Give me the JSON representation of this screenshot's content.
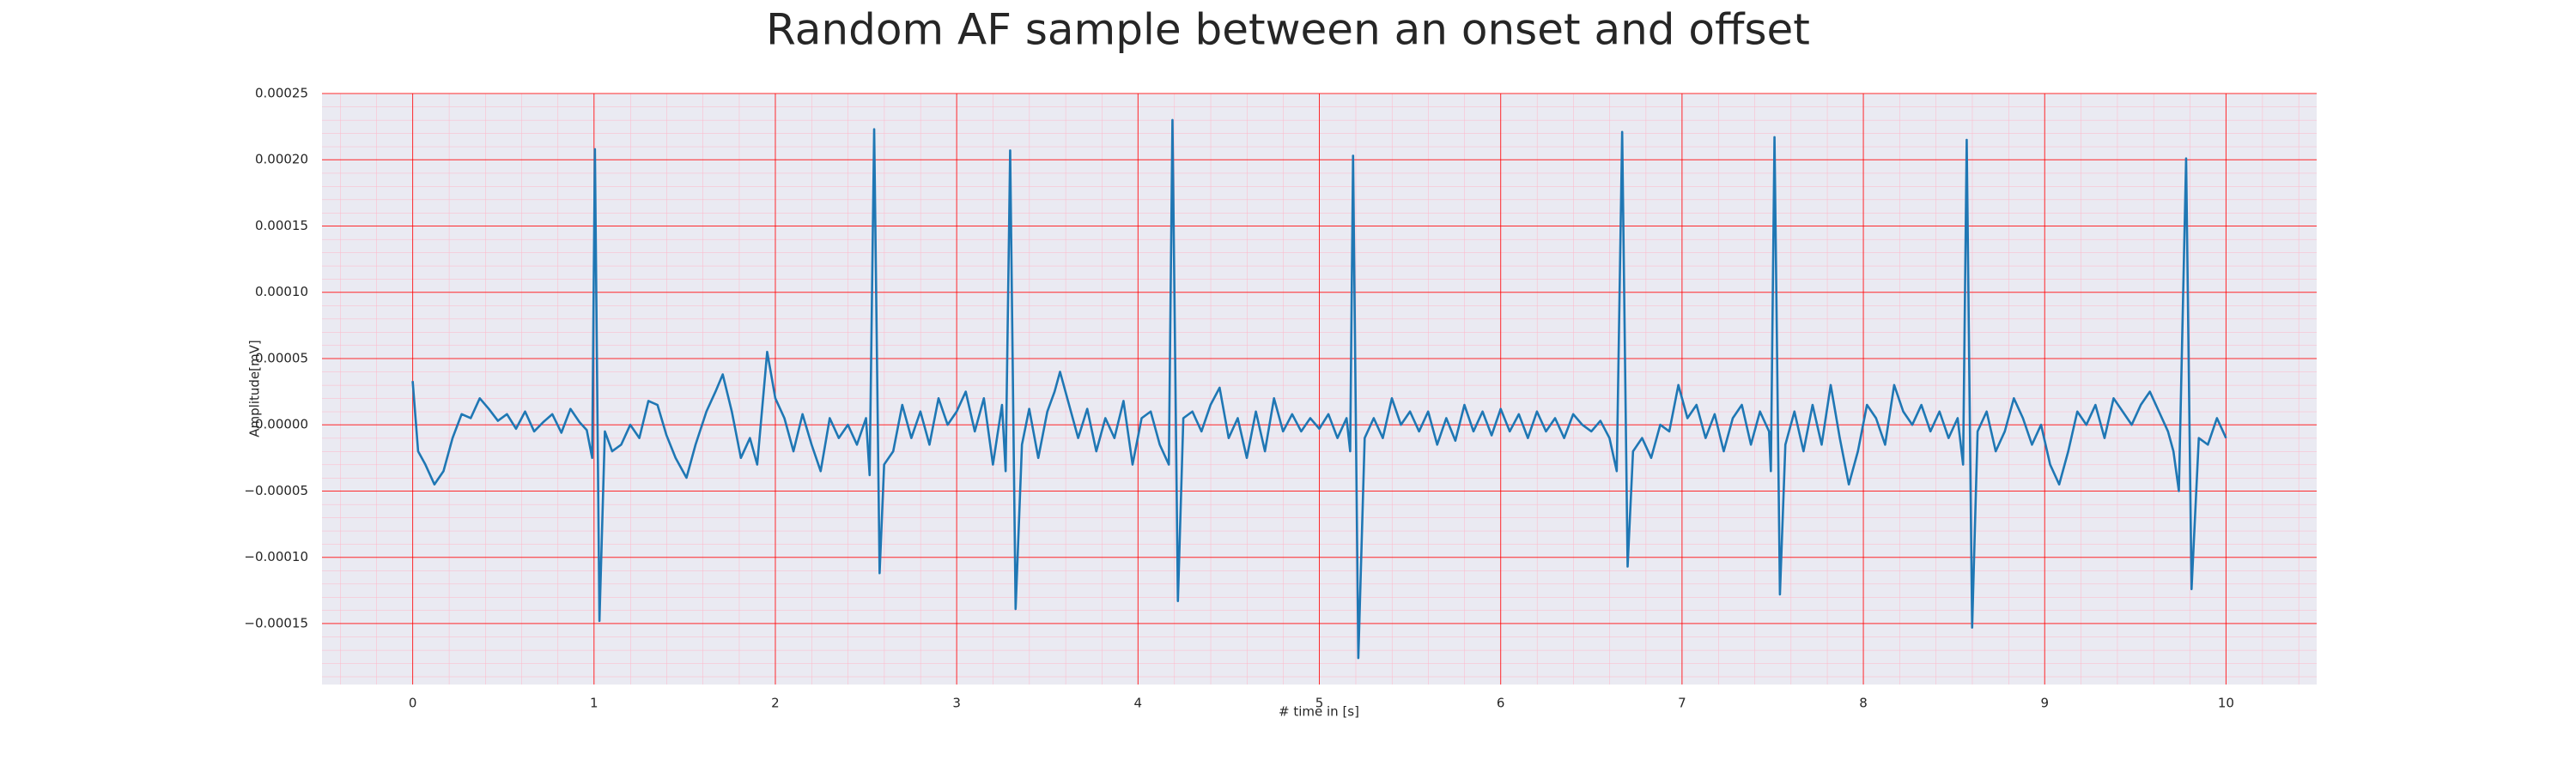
{
  "chart_data": {
    "type": "line",
    "title": "Random AF sample between an onset and offset",
    "x_label": "# time in [s]",
    "y_label": "Amplitude[mV]",
    "color": "#1f77b4",
    "background": "#eaeaf2",
    "grid": true,
    "grid_color": "#ff0000",
    "minor_grid": true,
    "minor_grid_color": "#ffb6c8",
    "xlim": [
      -0.5,
      10.5
    ],
    "ylim": [
      -0.000196,
      0.00025
    ],
    "xticks": [
      0,
      1,
      2,
      3,
      4,
      5,
      6,
      7,
      8,
      9,
      10
    ],
    "yticks": [
      {
        "value": -0.00015,
        "label": "−0.00015"
      },
      {
        "value": -0.0001,
        "label": "−0.00010"
      },
      {
        "value": -5e-05,
        "label": "−0.00005"
      },
      {
        "value": 0,
        "label": "0.00000"
      },
      {
        "value": 5e-05,
        "label": "0.00005"
      },
      {
        "value": 0.0001,
        "label": "0.00010"
      },
      {
        "value": 0.00015,
        "label": "0.00015"
      },
      {
        "value": 0.0002,
        "label": "0.00020"
      },
      0.00025
    ],
    "x": [
      0,
      0.03,
      0.07,
      0.12,
      0.17,
      0.22,
      0.27,
      0.32,
      0.37,
      0.42,
      0.47,
      0.52,
      0.57,
      0.62,
      0.67,
      0.72,
      0.77,
      0.82,
      0.87,
      0.92,
      0.96,
      0.99,
      1.005,
      1.03,
      1.06,
      1.1,
      1.15,
      1.2,
      1.25,
      1.3,
      1.35,
      1.4,
      1.45,
      1.51,
      1.56,
      1.62,
      1.67,
      1.71,
      1.76,
      1.81,
      1.86,
      1.9,
      1.955,
      2.0,
      2.05,
      2.1,
      2.15,
      2.2,
      2.25,
      2.3,
      2.35,
      2.4,
      2.45,
      2.5,
      2.52,
      2.545,
      2.575,
      2.6,
      2.65,
      2.7,
      2.75,
      2.8,
      2.85,
      2.9,
      2.95,
      3.0,
      3.05,
      3.1,
      3.15,
      3.2,
      3.25,
      3.27,
      3.295,
      3.325,
      3.36,
      3.4,
      3.45,
      3.5,
      3.54,
      3.57,
      3.62,
      3.67,
      3.72,
      3.77,
      3.82,
      3.87,
      3.92,
      3.97,
      4.02,
      4.07,
      4.12,
      4.17,
      4.19,
      4.22,
      4.25,
      4.3,
      4.35,
      4.4,
      4.45,
      4.5,
      4.55,
      4.6,
      4.65,
      4.7,
      4.75,
      4.8,
      4.85,
      4.9,
      4.95,
      5.0,
      5.05,
      5.1,
      5.15,
      5.17,
      5.186,
      5.215,
      5.25,
      5.3,
      5.35,
      5.4,
      5.45,
      5.5,
      5.55,
      5.6,
      5.65,
      5.7,
      5.75,
      5.8,
      5.85,
      5.9,
      5.95,
      6.0,
      6.05,
      6.1,
      6.15,
      6.2,
      6.25,
      6.3,
      6.35,
      6.4,
      6.45,
      6.5,
      6.55,
      6.6,
      6.64,
      6.67,
      6.7,
      6.73,
      6.78,
      6.83,
      6.88,
      6.93,
      6.98,
      7.03,
      7.08,
      7.13,
      7.18,
      7.23,
      7.28,
      7.33,
      7.38,
      7.43,
      7.48,
      7.49,
      7.51,
      7.54,
      7.57,
      7.62,
      7.67,
      7.72,
      7.77,
      7.82,
      7.87,
      7.92,
      7.97,
      8.02,
      8.07,
      8.12,
      8.17,
      8.22,
      8.27,
      8.32,
      8.37,
      8.42,
      8.47,
      8.52,
      8.55,
      8.57,
      8.6,
      8.63,
      8.68,
      8.73,
      8.78,
      8.83,
      8.88,
      8.93,
      8.98,
      9.03,
      9.08,
      9.13,
      9.18,
      9.23,
      9.28,
      9.33,
      9.38,
      9.43,
      9.48,
      9.53,
      9.58,
      9.63,
      9.68,
      9.71,
      9.74,
      9.78,
      9.81,
      9.85,
      9.9,
      9.95,
      10.0
    ],
    "values": [
      3.3e-05,
      -2e-05,
      -3e-05,
      -4.5e-05,
      -3.5e-05,
      -1e-05,
      8e-06,
      5e-06,
      2e-05,
      1.2e-05,
      3e-06,
      8e-06,
      -3e-06,
      1e-05,
      -5e-06,
      2e-06,
      8e-06,
      -6e-06,
      1.2e-05,
      2e-06,
      -4e-06,
      -2.5e-05,
      0.000208,
      -0.000148,
      -5e-06,
      -2e-05,
      -1.5e-05,
      0,
      -1e-05,
      1.8e-05,
      1.5e-05,
      -8e-06,
      -2.5e-05,
      -4e-05,
      -1.5e-05,
      1e-05,
      2.5e-05,
      3.8e-05,
      1e-05,
      -2.5e-05,
      -1e-05,
      -3e-05,
      5.5e-05,
      2e-05,
      5e-06,
      -2e-05,
      8e-06,
      -1.5e-05,
      -3.5e-05,
      5e-06,
      -1e-05,
      0,
      -1.5e-05,
      5e-06,
      -3.8e-05,
      0.000223,
      -0.000112,
      -3e-05,
      -2e-05,
      1.5e-05,
      -1e-05,
      1e-05,
      -1.5e-05,
      2e-05,
      0,
      1e-05,
      2.5e-05,
      -5e-06,
      2e-05,
      -3e-05,
      1.5e-05,
      -3.5e-05,
      0.000207,
      -0.000139,
      -1.5e-05,
      1.2e-05,
      -2.5e-05,
      1e-05,
      2.5e-05,
      4e-05,
      1.5e-05,
      -1e-05,
      1.2e-05,
      -2e-05,
      5e-06,
      -1e-05,
      1.8e-05,
      -3e-05,
      5e-06,
      1e-05,
      -1.5e-05,
      -3e-05,
      0.00023,
      -0.000133,
      5e-06,
      1e-05,
      -5e-06,
      1.5e-05,
      2.8e-05,
      -1e-05,
      5e-06,
      -2.5e-05,
      1e-05,
      -2e-05,
      2e-05,
      -5e-06,
      8e-06,
      -5e-06,
      5e-06,
      -3e-06,
      8e-06,
      -1e-05,
      5e-06,
      -2e-05,
      0.000203,
      -0.000176,
      -1e-05,
      5e-06,
      -1e-05,
      2e-05,
      0,
      1e-05,
      -5e-06,
      1e-05,
      -1.5e-05,
      5e-06,
      -1.2e-05,
      1.5e-05,
      -5e-06,
      1e-05,
      -8e-06,
      1.2e-05,
      -5e-06,
      8e-06,
      -1e-05,
      1e-05,
      -5e-06,
      5e-06,
      -1e-05,
      8e-06,
      0,
      -5e-06,
      3e-06,
      -1e-05,
      -3.5e-05,
      0.000221,
      -0.000107,
      -2e-05,
      -1e-05,
      -2.5e-05,
      0,
      -5e-06,
      3e-05,
      5e-06,
      1.5e-05,
      -1e-05,
      8e-06,
      -2e-05,
      5e-06,
      1.5e-05,
      -1.5e-05,
      1e-05,
      -5e-06,
      -3.5e-05,
      0.000217,
      -0.000128,
      -1.5e-05,
      1e-05,
      -2e-05,
      1.5e-05,
      -1.5e-05,
      3e-05,
      -1e-05,
      -4.5e-05,
      -2e-05,
      1.5e-05,
      5e-06,
      -1.5e-05,
      3e-05,
      1e-05,
      0,
      1.5e-05,
      -5e-06,
      1e-05,
      -1e-05,
      5e-06,
      -3e-05,
      0.000215,
      -0.000153,
      -5e-06,
      1e-05,
      -2e-05,
      -5e-06,
      2e-05,
      5e-06,
      -1.5e-05,
      0,
      -3e-05,
      -4.5e-05,
      -2e-05,
      1e-05,
      0,
      1.5e-05,
      -1e-05,
      2e-05,
      1e-05,
      0,
      1.5e-05,
      2.5e-05,
      1e-05,
      -5e-06,
      -2e-05,
      -5e-05,
      0.000201,
      -0.000124,
      -1e-05,
      -1.5e-05,
      5e-06,
      -1e-05
    ]
  }
}
